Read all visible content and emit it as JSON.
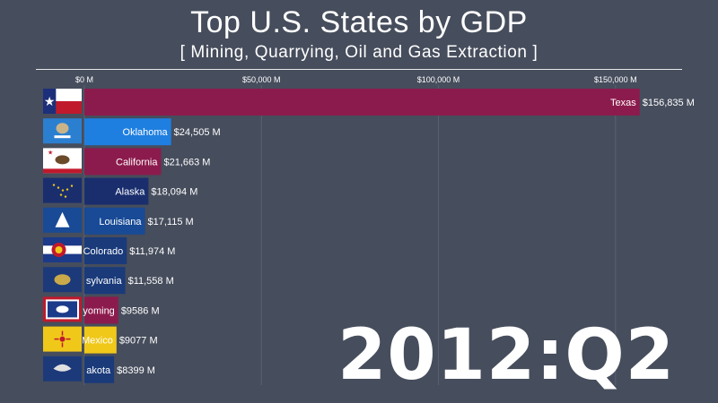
{
  "title": "Top U.S. States by GDP",
  "subtitle": "[ Mining, Quarrying, Oil and Gas Extraction ]",
  "period": "2012:Q2",
  "chart_data": {
    "type": "bar",
    "orientation": "horizontal",
    "title": "Top U.S. States by GDP",
    "subtitle": "[ Mining, Quarrying, Oil and Gas Extraction ]",
    "xlim": [
      0,
      165000
    ],
    "ticks": [
      0,
      50000,
      100000,
      150000
    ],
    "tick_labels": [
      "$0 M",
      "$50,000 M",
      "$100,000 M",
      "$150,000 M"
    ],
    "grid": true,
    "categories": [
      "Texas",
      "Oklahoma",
      "California",
      "Alaska",
      "Louisiana",
      "Colorado",
      "Pennsylvania",
      "Wyoming",
      "New Mexico",
      "North Dakota"
    ],
    "bar_labels": [
      "Texas",
      "Oklahoma",
      "California",
      "Alaska",
      "Louisiana",
      "Colorado",
      "sylvania",
      "yoming",
      "Mexico",
      "akota"
    ],
    "values": [
      156835,
      24505,
      21663,
      18094,
      17115,
      11974,
      11558,
      9586,
      9077,
      8399
    ],
    "value_labels": [
      "$156,835 M",
      "$24,505 M",
      "$21,663 M",
      "$18,094 M",
      "$17,115 M",
      "$11,974 M",
      "$11,558 M",
      "$9586 M",
      "$9077 M",
      "$8399 M"
    ],
    "colors": [
      "#8c1b4d",
      "#1f7fe0",
      "#8c1b4d",
      "#1a2e6e",
      "#184a96",
      "#1a3a7a",
      "#1a3a7a",
      "#8c1b4d",
      "#f0c81a",
      "#1a3a7a"
    ],
    "flags": [
      "texas-flag-icon",
      "oklahoma-flag-icon",
      "california-flag-icon",
      "alaska-flag-icon",
      "louisiana-flag-icon",
      "colorado-flag-icon",
      "pennsylvania-flag-icon",
      "wyoming-flag-icon",
      "new-mexico-flag-icon",
      "north-dakota-flag-icon"
    ]
  }
}
